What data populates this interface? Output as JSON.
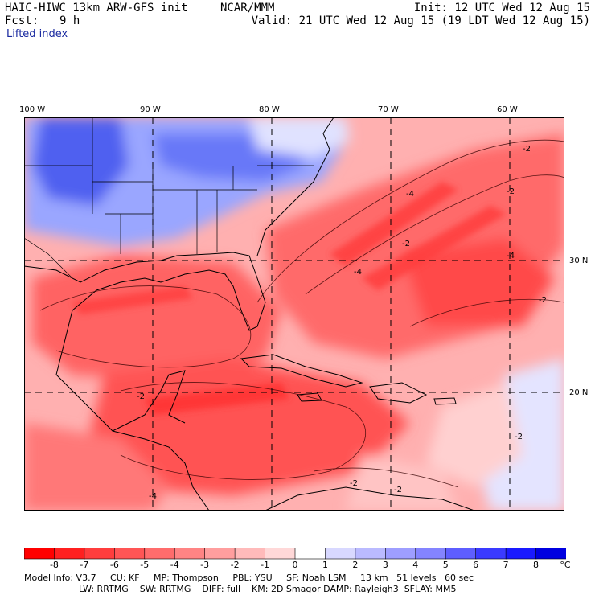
{
  "header": {
    "model_title": "HAIC-HIWC 13km ARW-GFS init",
    "org": "NCAR/MMM",
    "init_time": "Init: 12 UTC Wed 12 Aug 15",
    "forecast_label": "Fcst:",
    "forecast_hours": "9 h",
    "valid_time": "Valid: 21 UTC Wed 12 Aug 15 (19 LDT Wed 12 Aug 15)",
    "field_name": "Lifted index"
  },
  "map": {
    "longitude_labels": [
      "100 W",
      "90 W",
      "80 W",
      "70 W",
      "60 W"
    ],
    "latitude_labels": [
      "30 N",
      "20 N"
    ],
    "contour_labels": [
      "-2",
      "-4",
      "-2",
      "-4",
      "-2",
      "-4",
      "-2",
      "-2",
      "-2",
      "-4",
      "-2",
      "-2"
    ]
  },
  "colorbar": {
    "tick_labels": [
      "-8",
      "-7",
      "-6",
      "-5",
      "-4",
      "-3",
      "-2",
      "-1",
      "0",
      "1",
      "2",
      "3",
      "4",
      "5",
      "6",
      "7",
      "8"
    ],
    "unit": "°C",
    "colors": [
      "#ff0000",
      "#ff2020",
      "#ff3d3d",
      "#ff5555",
      "#ff6c6c",
      "#ff8484",
      "#ff9e9e",
      "#ffbaba",
      "#ffd8d8",
      "#ffffff",
      "#d8d8ff",
      "#babaff",
      "#9e9eff",
      "#8484ff",
      "#5e5eff",
      "#3a3aff",
      "#1a1aff",
      "#0000e0"
    ]
  },
  "footer": {
    "line1": "Model Info: V3.7     CU: KF     MP: Thompson     PBL: YSU     SF: Noah LSM     13 km   51 levels   60 sec",
    "line2": "LW: RRTMG    SW: RRTMG    DIFF: full    KM: 2D Smagor DAMP: Rayleigh3  SFLAY: MM5"
  }
}
